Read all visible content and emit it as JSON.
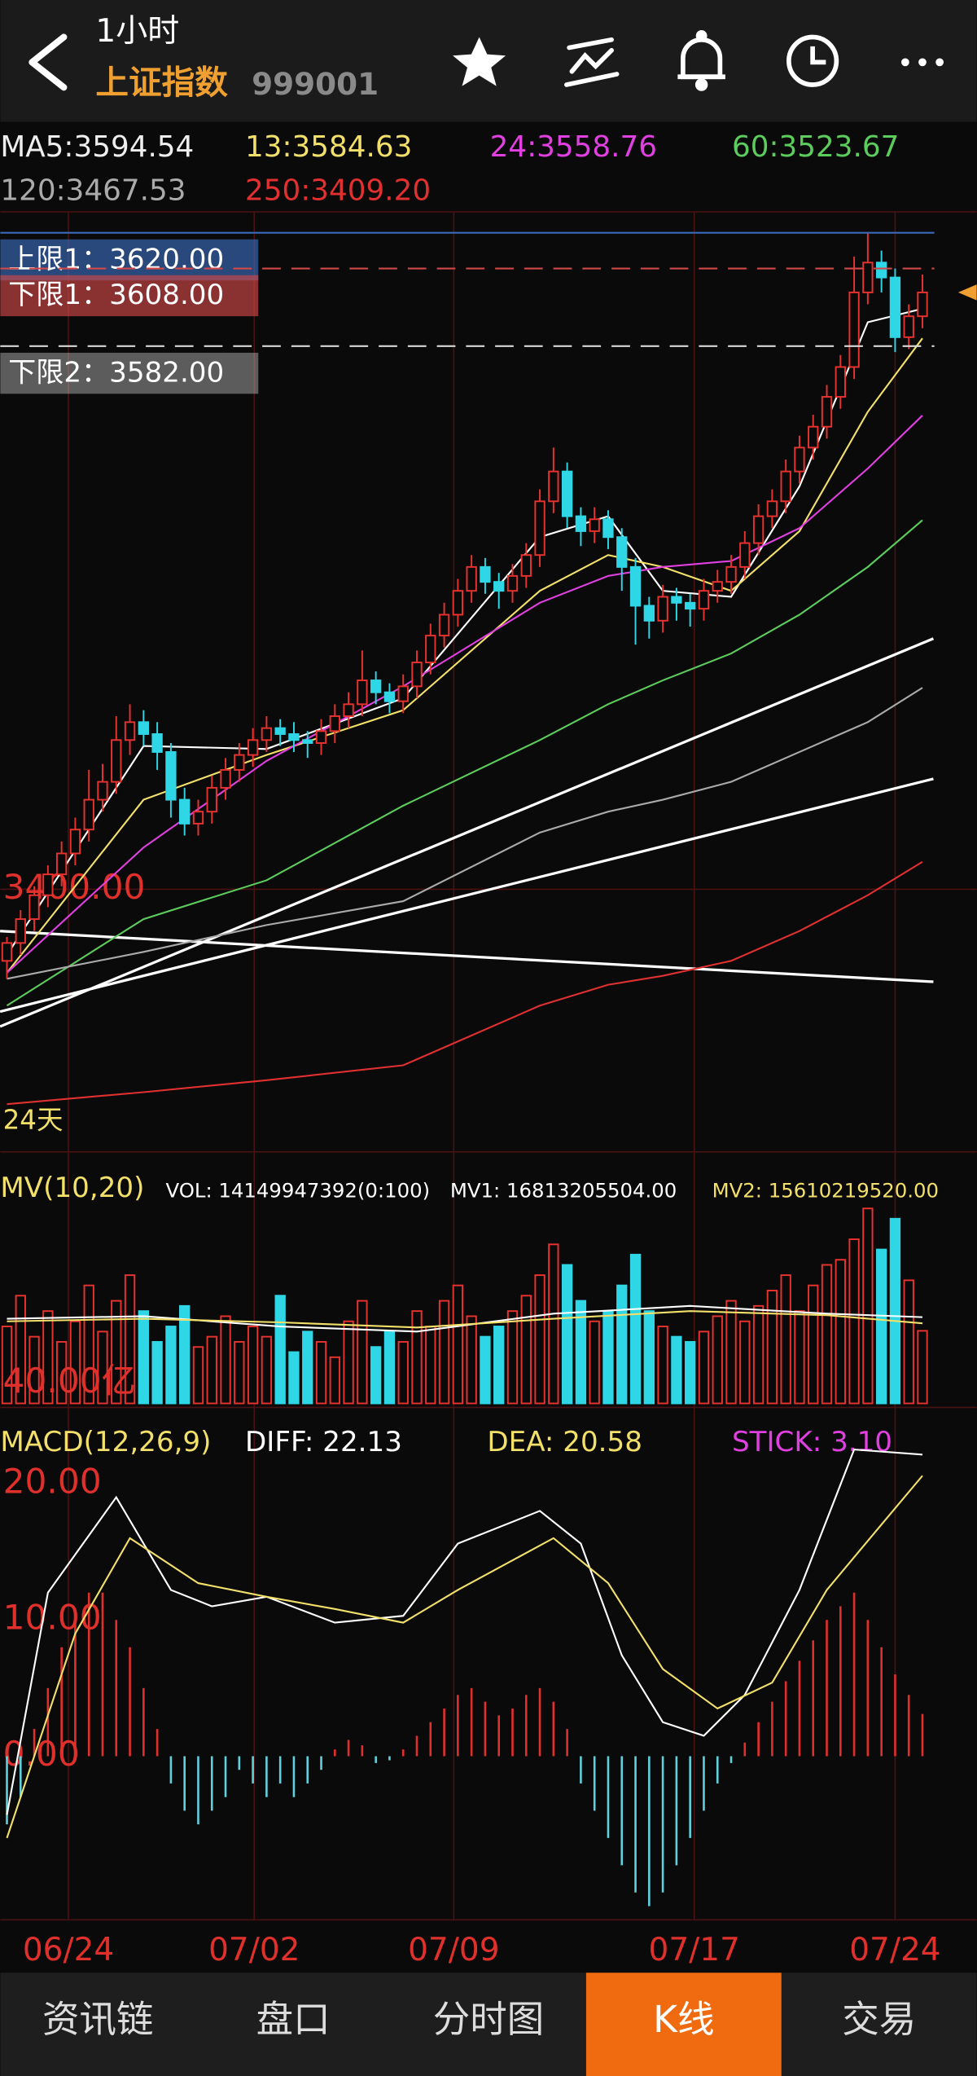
{
  "header": {
    "period": "1小时",
    "name": "上证指数",
    "code": "999001"
  },
  "chart_data": [
    {
      "type": "candlestick",
      "ylim": [
        3312,
        3627
      ],
      "yticks": [
        {
          "value": 3400,
          "label": "3400.00"
        }
      ],
      "xticks": [
        {
          "value": 4.5,
          "label": "06/24"
        },
        {
          "value": 18.1,
          "label": "07/02"
        },
        {
          "value": 32.7,
          "label": "07/09"
        },
        {
          "value": 50.3,
          "label": "07/17"
        },
        {
          "value": 65,
          "label": "07/24"
        }
      ],
      "up_color": "#e8322e",
      "down_color": "#2fd6e6",
      "candles": [
        [
          3376,
          3384,
          3370,
          3382
        ],
        [
          3382,
          3393,
          3378,
          3390
        ],
        [
          3390,
          3401,
          3386,
          3398
        ],
        [
          3398,
          3408,
          3394,
          3405
        ],
        [
          3405,
          3416,
          3401,
          3412
        ],
        [
          3412,
          3424,
          3408,
          3420
        ],
        [
          3420,
          3440,
          3416,
          3430
        ],
        [
          3430,
          3442,
          3426,
          3436
        ],
        [
          3436,
          3458,
          3432,
          3450
        ],
        [
          3450,
          3462,
          3445,
          3456
        ],
        [
          3456,
          3460,
          3448,
          3452
        ],
        [
          3452,
          3456,
          3440,
          3446
        ],
        [
          3446,
          3449,
          3424,
          3430
        ],
        [
          3430,
          3434,
          3418,
          3422
        ],
        [
          3422,
          3430,
          3418,
          3426
        ],
        [
          3426,
          3438,
          3422,
          3434
        ],
        [
          3434,
          3444,
          3430,
          3440
        ],
        [
          3440,
          3449,
          3436,
          3445
        ],
        [
          3445,
          3454,
          3441,
          3450
        ],
        [
          3450,
          3458,
          3446,
          3454
        ],
        [
          3454,
          3457,
          3448,
          3452
        ],
        [
          3452,
          3456,
          3446,
          3450
        ],
        [
          3450,
          3453,
          3444,
          3449
        ],
        [
          3449,
          3457,
          3445,
          3453
        ],
        [
          3453,
          3462,
          3449,
          3458
        ],
        [
          3458,
          3466,
          3454,
          3462
        ],
        [
          3462,
          3480,
          3458,
          3470
        ],
        [
          3470,
          3473,
          3462,
          3466
        ],
        [
          3466,
          3469,
          3459,
          3463
        ],
        [
          3463,
          3472,
          3459,
          3468
        ],
        [
          3468,
          3480,
          3464,
          3476
        ],
        [
          3476,
          3489,
          3472,
          3485
        ],
        [
          3485,
          3496,
          3481,
          3492
        ],
        [
          3492,
          3504,
          3488,
          3500
        ],
        [
          3500,
          3512,
          3496,
          3508
        ],
        [
          3508,
          3511,
          3499,
          3503
        ],
        [
          3503,
          3506,
          3494,
          3500
        ],
        [
          3500,
          3509,
          3496,
          3505
        ],
        [
          3505,
          3516,
          3501,
          3512
        ],
        [
          3512,
          3534,
          3508,
          3530
        ],
        [
          3530,
          3548,
          3526,
          3540
        ],
        [
          3540,
          3543,
          3521,
          3525
        ],
        [
          3525,
          3528,
          3515,
          3520
        ],
        [
          3520,
          3528,
          3516,
          3524
        ],
        [
          3524,
          3527,
          3514,
          3518
        ],
        [
          3518,
          3521,
          3500,
          3508
        ],
        [
          3508,
          3511,
          3482,
          3495
        ],
        [
          3495,
          3498,
          3484,
          3490
        ],
        [
          3490,
          3502,
          3486,
          3498
        ],
        [
          3498,
          3501,
          3490,
          3496
        ],
        [
          3496,
          3499,
          3488,
          3494
        ],
        [
          3494,
          3504,
          3490,
          3500
        ],
        [
          3500,
          3507,
          3496,
          3503
        ],
        [
          3503,
          3512,
          3499,
          3508
        ],
        [
          3508,
          3520,
          3504,
          3516
        ],
        [
          3516,
          3529,
          3512,
          3525
        ],
        [
          3525,
          3534,
          3521,
          3530
        ],
        [
          3530,
          3544,
          3526,
          3540
        ],
        [
          3540,
          3552,
          3536,
          3548
        ],
        [
          3548,
          3559,
          3544,
          3555
        ],
        [
          3555,
          3569,
          3551,
          3565
        ],
        [
          3565,
          3579,
          3561,
          3575
        ],
        [
          3575,
          3612,
          3571,
          3600
        ],
        [
          3600,
          3620,
          3596,
          3610
        ],
        [
          3610,
          3614,
          3600,
          3605
        ],
        [
          3605,
          3608,
          3580,
          3585
        ],
        [
          3585,
          3596,
          3581,
          3592
        ],
        [
          3592,
          3606,
          3588,
          3600
        ]
      ],
      "series": [
        {
          "label": "MA5:3594.54",
          "color": "#ffffff",
          "x": [
            0,
            10,
            19,
            29,
            39,
            44,
            48,
            53,
            58,
            63,
            67
          ],
          "values": [
            3378,
            3448,
            3447,
            3464,
            3518,
            3525,
            3500,
            3498,
            3535,
            3590,
            3594.54
          ]
        },
        {
          "label": "13:3584.63",
          "color": "#f2e06a",
          "x": [
            0,
            10,
            19,
            29,
            39,
            44,
            48,
            53,
            58,
            63,
            67
          ],
          "values": [
            3372,
            3430,
            3445,
            3460,
            3500,
            3512,
            3508,
            3500,
            3520,
            3560,
            3584.63
          ]
        },
        {
          "label": "24:3558.76",
          "color": "#e040e0",
          "x": [
            0,
            10,
            19,
            29,
            39,
            44,
            48,
            53,
            58,
            63,
            67
          ],
          "values": [
            3372,
            3414,
            3443,
            3468,
            3496,
            3505,
            3508,
            3510,
            3521,
            3541,
            3558.76
          ]
        },
        {
          "label": "60:3523.67",
          "color": "#5ccc5c",
          "x": [
            0,
            10,
            19,
            29,
            39,
            44,
            48,
            53,
            58,
            63,
            67
          ],
          "values": [
            3361,
            3390,
            3403,
            3428,
            3450,
            3462,
            3470,
            3479,
            3492,
            3508,
            3523.67
          ]
        },
        {
          "label": "120:3467.53",
          "color": "#aaaaaa",
          "x": [
            0,
            10,
            19,
            29,
            39,
            44,
            48,
            53,
            58,
            63,
            67
          ],
          "values": [
            3370,
            3379,
            3388,
            3396,
            3419,
            3426,
            3430,
            3436,
            3446,
            3456,
            3467.53
          ]
        },
        {
          "label": "250:3409.20",
          "color": "#e03030",
          "x": [
            0,
            10,
            19,
            29,
            39,
            44,
            48,
            53,
            58,
            63,
            67
          ],
          "values": [
            3328,
            3332,
            3336,
            3341,
            3361,
            3368,
            3371,
            3376,
            3386,
            3398,
            3409.2
          ]
        }
      ],
      "levels": [
        {
          "label": "上限1：3620.00",
          "value": 3620,
          "color": "#3a6ab8"
        },
        {
          "label": "下限1：3608.00",
          "value": 3608,
          "color": "#d04848"
        },
        {
          "label": "下限2：3582.00",
          "value": 3582,
          "color": "#d8d8d8"
        }
      ],
      "trend_lines": [
        {
          "x": [
            -0.5,
            67.8
          ],
          "values": [
            3354,
            3484
          ]
        },
        {
          "x": [
            -0.5,
            67.8
          ],
          "values": [
            3359,
            3437
          ]
        },
        {
          "x": [
            -0.5,
            67.8
          ],
          "values": [
            3386,
            3369
          ]
        }
      ],
      "annotation": "24天"
    },
    {
      "type": "volume",
      "title": "MV(10,20)",
      "info": [
        {
          "text": "VOL: 14149947392(0:100)",
          "color": "#ffffff"
        },
        {
          "text": "MV1: 16813205504.00",
          "color": "#ffffff"
        },
        {
          "text": "MV2: 15610219520.00",
          "color": "#f2e06a"
        }
      ],
      "ylim": [
        0,
        400
      ],
      "yticks": [
        {
          "value": 40,
          "label": "40.00亿"
        }
      ],
      "values": [
        150,
        210,
        130,
        180,
        120,
        160,
        230,
        140,
        200,
        250,
        180,
        120,
        150,
        190,
        110,
        130,
        170,
        120,
        150,
        130,
        210,
        100,
        140,
        120,
        90,
        160,
        200,
        110,
        140,
        120,
        180,
        150,
        200,
        230,
        170,
        130,
        150,
        180,
        210,
        250,
        310,
        270,
        200,
        160,
        180,
        230,
        290,
        180,
        150,
        130,
        120,
        140,
        170,
        200,
        160,
        190,
        220,
        250,
        180,
        230,
        270,
        280,
        320,
        380,
        300,
        360,
        240,
        141.5
      ],
      "series": [
        {
          "color": "#ffffff",
          "x": [
            0,
            10,
            20,
            30,
            40,
            50,
            60,
            67
          ],
          "values": [
            165,
            170,
            150,
            140,
            175,
            190,
            175,
            168.13
          ]
        },
        {
          "color": "#f2e06a",
          "x": [
            0,
            10,
            20,
            30,
            40,
            50,
            60,
            67
          ],
          "values": [
            160,
            165,
            158,
            148,
            165,
            180,
            172,
            156.1
          ]
        }
      ]
    },
    {
      "type": "macd",
      "title": "MACD(12,26,9)",
      "info": [
        {
          "text": "DIFF: 22.13",
          "color": "#ffffff"
        },
        {
          "text": "DEA: 20.58",
          "color": "#f2e06a"
        },
        {
          "text": "STICK: 3.10",
          "color": "#e040e0"
        }
      ],
      "ylim": [
        -12,
        22
      ],
      "yticks": [
        {
          "value": 20,
          "label": "20.00"
        },
        {
          "value": 10,
          "label": "10.00"
        },
        {
          "value": 0,
          "label": "0.00"
        }
      ],
      "values": [
        -5,
        -3,
        2,
        5,
        8,
        10,
        12,
        12,
        10,
        8,
        5,
        2,
        -2,
        -4,
        -5,
        -4,
        -3,
        -1,
        -2,
        -3,
        -2,
        -3,
        -2,
        -1,
        0.5,
        1.2,
        0.8,
        -0.5,
        -0.3,
        0.5,
        1.5,
        2.5,
        3.5,
        4.5,
        5,
        4,
        3,
        3.5,
        4.5,
        5,
        4,
        2,
        -2,
        -4,
        -6,
        -8,
        -10,
        -11,
        -10,
        -8,
        -6,
        -4,
        -2,
        -0.5,
        1,
        2.5,
        4,
        5.5,
        7,
        8.5,
        10,
        11,
        12,
        10,
        8,
        6,
        4.5,
        3.1
      ],
      "series": [
        {
          "color": "#ffffff",
          "x": [
            0,
            3,
            8,
            12,
            15,
            19,
            24,
            29,
            33,
            39,
            42,
            45,
            48,
            51,
            54,
            58,
            62,
            67
          ],
          "values": [
            -4.3,
            12,
            19,
            12.2,
            11,
            11.7,
            9.8,
            10.3,
            15.6,
            18,
            15.6,
            7.4,
            2.5,
            1.5,
            4.5,
            12.2,
            22.5,
            22.13
          ]
        },
        {
          "color": "#f2e06a",
          "x": [
            0,
            5,
            9,
            14,
            19,
            24,
            29,
            33,
            40,
            44,
            48,
            52,
            56,
            60,
            64,
            67
          ],
          "values": [
            -6,
            9,
            16,
            12.7,
            11.7,
            10.8,
            9.8,
            12.2,
            16,
            12.7,
            6.4,
            3.5,
            5.4,
            12.2,
            17,
            20.58
          ]
        }
      ]
    }
  ],
  "tabs": [
    "资讯链",
    "盘口",
    "分时图",
    "K线",
    "交易"
  ],
  "active_tab": 3
}
